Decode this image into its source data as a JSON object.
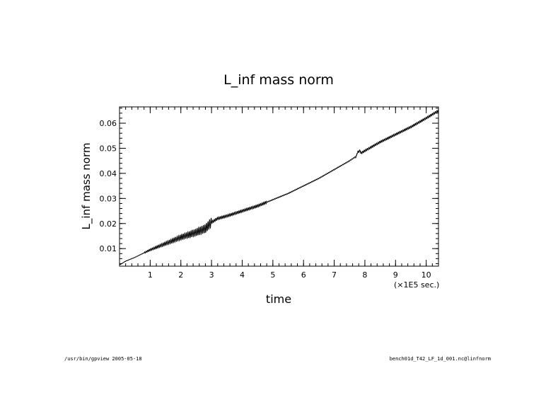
{
  "chart_data": {
    "type": "line",
    "title": "L_inf mass norm",
    "xlabel": "time",
    "ylabel": "L_inf mass norm",
    "x_unit_label": "(×1E5 sec.)",
    "xlim": [
      0,
      10.4
    ],
    "ylim": [
      0.003,
      0.0665
    ],
    "x_ticks": [
      1,
      2,
      3,
      4,
      5,
      6,
      7,
      8,
      9,
      10
    ],
    "y_ticks": [
      0.01,
      0.02,
      0.03,
      0.04,
      0.05,
      0.06
    ],
    "y_tick_labels": [
      "0.01",
      "0.02",
      "0.03",
      "0.04",
      "0.05",
      "0.06"
    ],
    "grid": false,
    "series": [
      {
        "x": [
          0,
          0.2,
          0.5,
          1.0,
          1.5,
          2.0,
          2.5,
          2.8,
          3.0,
          3.2,
          3.5,
          4.0,
          4.5,
          5.0,
          5.5,
          6.0,
          6.5,
          7.0,
          7.5,
          7.8,
          8.0,
          8.5,
          9.0,
          9.5,
          10.0,
          10.4
        ],
        "y": [
          0.0035,
          0.005,
          0.0065,
          0.0095,
          0.012,
          0.0145,
          0.0165,
          0.018,
          0.0205,
          0.022,
          0.023,
          0.025,
          0.027,
          0.0295,
          0.032,
          0.035,
          0.038,
          0.0415,
          0.045,
          0.0475,
          0.049,
          0.0525,
          0.0555,
          0.0585,
          0.062,
          0.065
        ]
      }
    ]
  },
  "footer": {
    "left": "/usr/bin/gpview  2005-05-18",
    "right": "bench01d_T42_LF_1d_001.nc@linfnorm"
  }
}
